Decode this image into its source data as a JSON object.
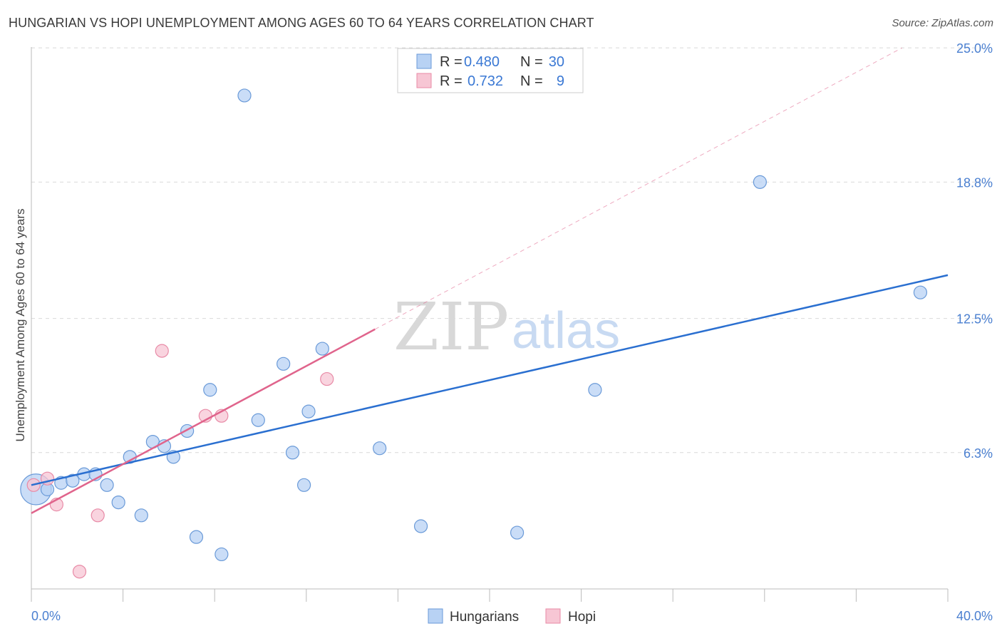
{
  "title": "HUNGARIAN VS HOPI UNEMPLOYMENT AMONG AGES 60 TO 64 YEARS CORRELATION CHART",
  "source": "Source: ZipAtlas.com",
  "watermark": {
    "zip": "ZIP",
    "atlas": "atlas"
  },
  "colors": {
    "hungarian_fill": "#b8d2f4",
    "hungarian_stroke": "#6a9ad8",
    "hungarian_line": "#2a6fd0",
    "hopi_fill": "#f7c6d4",
    "hopi_stroke": "#e88aa6",
    "hopi_line": "#e0648c",
    "grid": "#d9d9d9",
    "tick_label": "#4a7fd0"
  },
  "legend": {
    "rows": [
      {
        "r_label": "R =",
        "r_value": "0.480",
        "n_label": "N =",
        "n_value": "30"
      },
      {
        "r_label": "R =",
        "r_value": "0.732",
        "n_label": "N =",
        "n_value": "9"
      }
    ]
  },
  "bottom_legend": {
    "items": [
      "Hungarians",
      "Hopi"
    ]
  },
  "chart_data": {
    "type": "scatter",
    "title": "HUNGARIAN VS HOPI UNEMPLOYMENT AMONG AGES 60 TO 64 YEARS CORRELATION CHART",
    "xlabel": "",
    "ylabel": "Unemployment Among Ages 60 to 64 years",
    "xlim": [
      0,
      40
    ],
    "ylim": [
      0,
      25.5
    ],
    "x_tick_labels": [
      "0.0%",
      "40.0%"
    ],
    "y_ticks": [
      6.3,
      12.5,
      18.8,
      25.0
    ],
    "y_tick_labels": [
      "6.3%",
      "12.5%",
      "18.8%",
      "25.0%"
    ],
    "grid": "horizontal-dashed",
    "legend_position": "top-center",
    "series": [
      {
        "name": "Hungarians",
        "r": 0.48,
        "n": 30,
        "trend": {
          "x": [
            0,
            40
          ],
          "y": [
            4.8,
            14.5
          ]
        },
        "points": [
          {
            "x": 0.2,
            "y": 4.6,
            "s": 2.4
          },
          {
            "x": 0.7,
            "y": 4.6,
            "s": 1
          },
          {
            "x": 1.3,
            "y": 4.9,
            "s": 1
          },
          {
            "x": 1.8,
            "y": 5.0,
            "s": 1
          },
          {
            "x": 2.3,
            "y": 5.3,
            "s": 1
          },
          {
            "x": 2.8,
            "y": 5.3,
            "s": 1
          },
          {
            "x": 3.3,
            "y": 4.8,
            "s": 1
          },
          {
            "x": 3.8,
            "y": 4.0,
            "s": 1
          },
          {
            "x": 4.3,
            "y": 6.1,
            "s": 1
          },
          {
            "x": 4.8,
            "y": 3.4,
            "s": 1
          },
          {
            "x": 5.3,
            "y": 6.8,
            "s": 1
          },
          {
            "x": 5.8,
            "y": 6.6,
            "s": 1
          },
          {
            "x": 6.2,
            "y": 6.1,
            "s": 1
          },
          {
            "x": 6.8,
            "y": 7.3,
            "s": 1
          },
          {
            "x": 7.2,
            "y": 2.4,
            "s": 1
          },
          {
            "x": 7.8,
            "y": 9.2,
            "s": 1
          },
          {
            "x": 8.3,
            "y": 1.6,
            "s": 1
          },
          {
            "x": 9.3,
            "y": 22.8,
            "s": 1
          },
          {
            "x": 9.9,
            "y": 7.8,
            "s": 1
          },
          {
            "x": 11.0,
            "y": 10.4,
            "s": 1
          },
          {
            "x": 11.4,
            "y": 6.3,
            "s": 1
          },
          {
            "x": 11.9,
            "y": 4.8,
            "s": 1
          },
          {
            "x": 12.1,
            "y": 8.2,
            "s": 1
          },
          {
            "x": 12.7,
            "y": 11.1,
            "s": 1
          },
          {
            "x": 15.2,
            "y": 6.5,
            "s": 1
          },
          {
            "x": 17.0,
            "y": 2.9,
            "s": 1
          },
          {
            "x": 21.2,
            "y": 2.6,
            "s": 1
          },
          {
            "x": 24.6,
            "y": 9.2,
            "s": 1
          },
          {
            "x": 31.8,
            "y": 18.8,
            "s": 1
          },
          {
            "x": 38.8,
            "y": 13.7,
            "s": 1
          }
        ]
      },
      {
        "name": "Hopi",
        "r": 0.732,
        "n": 9,
        "trend": {
          "x": [
            0,
            15
          ],
          "y": [
            3.5,
            12.0
          ]
        },
        "trend_dashed": {
          "x": [
            15,
            38
          ],
          "y": [
            12.0,
            25.0
          ]
        },
        "points": [
          {
            "x": 0.1,
            "y": 4.8,
            "s": 1
          },
          {
            "x": 0.7,
            "y": 5.1,
            "s": 1
          },
          {
            "x": 1.1,
            "y": 3.9,
            "s": 1
          },
          {
            "x": 2.1,
            "y": 0.8,
            "s": 1
          },
          {
            "x": 2.9,
            "y": 3.4,
            "s": 1
          },
          {
            "x": 5.7,
            "y": 11.0,
            "s": 1
          },
          {
            "x": 7.6,
            "y": 8.0,
            "s": 1
          },
          {
            "x": 8.3,
            "y": 8.0,
            "s": 1
          },
          {
            "x": 12.9,
            "y": 9.7,
            "s": 1
          }
        ]
      }
    ]
  }
}
